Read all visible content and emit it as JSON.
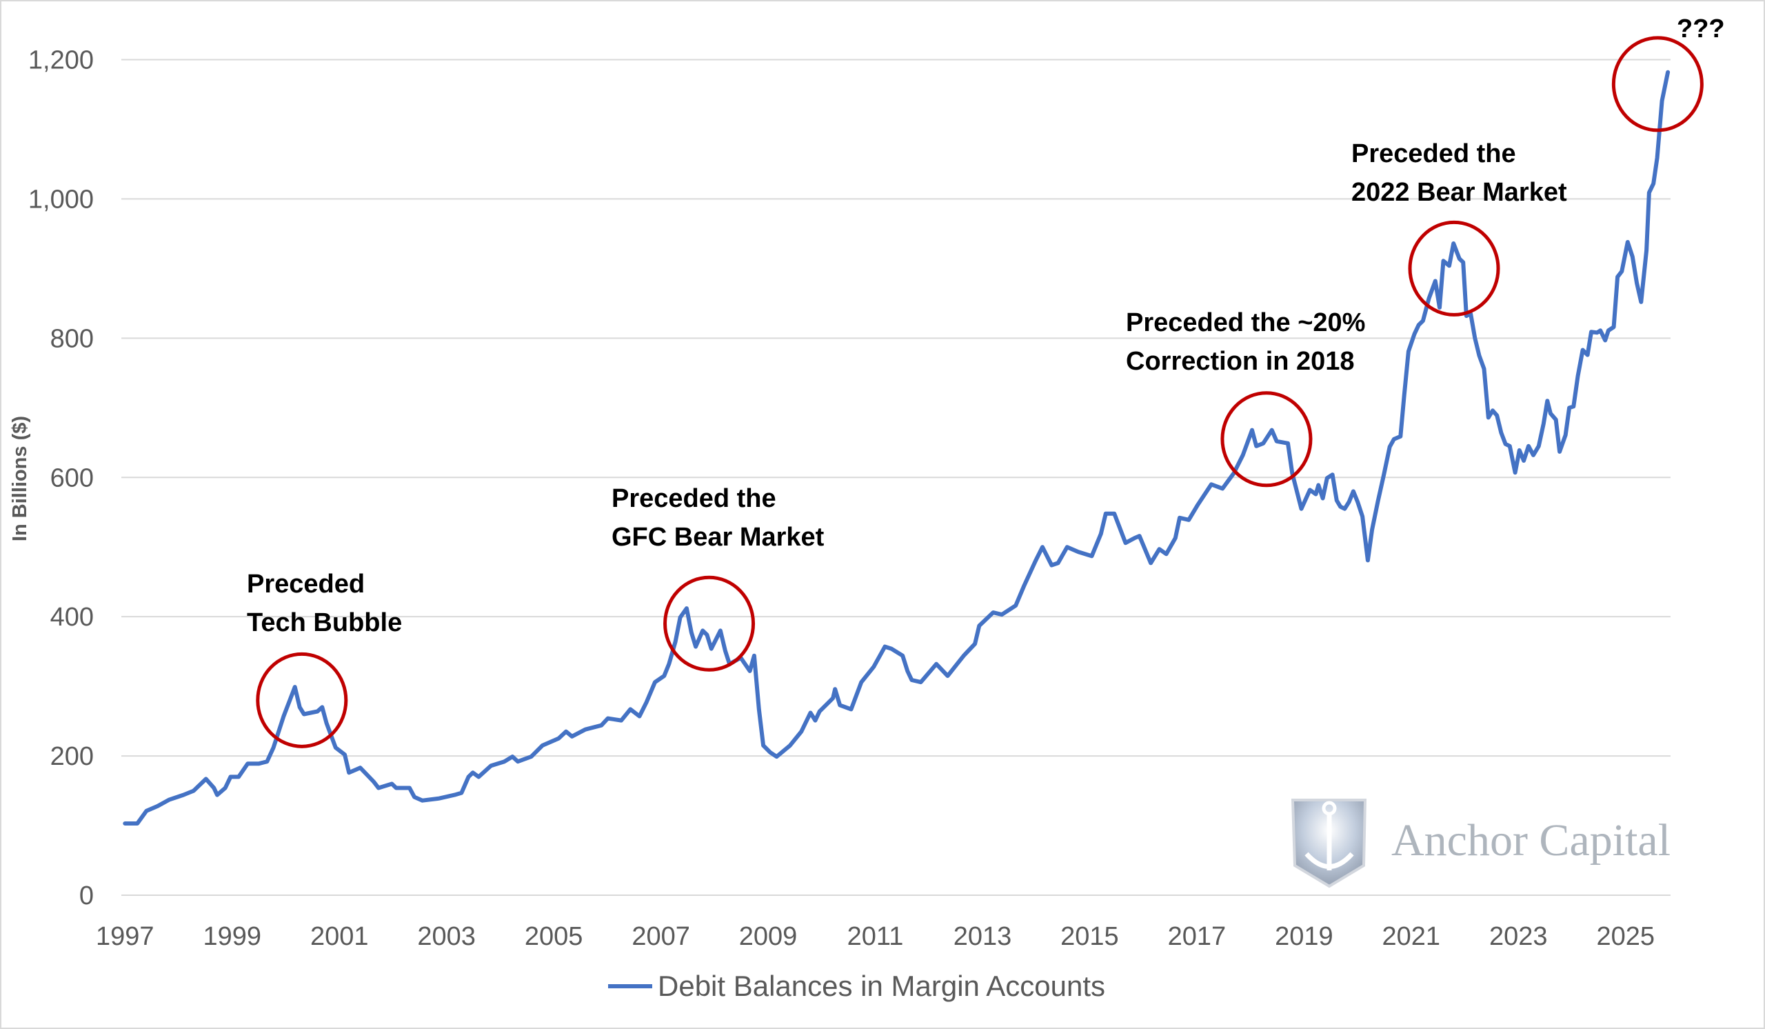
{
  "chart_data": {
    "type": "line",
    "title": "",
    "xlabel": "",
    "ylabel": "In Billions ($)",
    "xlim": [
      1997,
      2025.9
    ],
    "ylim": [
      0,
      1200
    ],
    "x_ticks": [
      "1997",
      "1999",
      "2001",
      "2003",
      "2005",
      "2007",
      "2009",
      "2011",
      "2013",
      "2015",
      "2017",
      "2019",
      "2021",
      "2023",
      "2025"
    ],
    "y_ticks": [
      0,
      200,
      400,
      600,
      800,
      1000,
      1200
    ],
    "y_tick_labels": [
      "0",
      "200",
      "400",
      "600",
      "800",
      "1,000",
      "1,200"
    ],
    "grid": "horizontal",
    "legend_position": "bottom",
    "series": [
      {
        "name": "Debit Balances in Margin Accounts",
        "color": "#4472c4",
        "x": [
          1997.0,
          1997.23,
          1997.4,
          1997.61,
          1997.82,
          1998.09,
          1998.28,
          1998.51,
          1998.66,
          1998.72,
          1998.87,
          1998.97,
          1999.12,
          1999.29,
          1999.5,
          1999.65,
          1999.77,
          1999.96,
          2000.09,
          2000.17,
          2000.26,
          2000.34,
          2000.59,
          2000.68,
          2000.76,
          2000.93,
          2001.1,
          2001.18,
          2001.39,
          2001.64,
          2001.73,
          2001.98,
          2002.06,
          2002.31,
          2002.4,
          2002.55,
          2002.86,
          2003.15,
          2003.28,
          2003.41,
          2003.49,
          2003.6,
          2003.83,
          2004.08,
          2004.23,
          2004.33,
          2004.58,
          2004.79,
          2005.09,
          2005.23,
          2005.34,
          2005.59,
          2005.89,
          2006.01,
          2006.26,
          2006.43,
          2006.6,
          2006.73,
          2006.89,
          2007.06,
          2007.15,
          2007.27,
          2007.36,
          2007.48,
          2007.57,
          2007.65,
          2007.78,
          2007.86,
          2007.94,
          2008.11,
          2008.2,
          2008.28,
          2008.49,
          2008.66,
          2008.74,
          2008.83,
          2008.91,
          2009.04,
          2009.16,
          2009.41,
          2009.62,
          2009.79,
          2009.88,
          2009.96,
          2010.21,
          2010.25,
          2010.34,
          2010.55,
          2010.74,
          2010.97,
          2011.18,
          2011.3,
          2011.51,
          2011.6,
          2011.68,
          2011.85,
          2012.14,
          2012.35,
          2012.65,
          2012.86,
          2012.94,
          2013.2,
          2013.36,
          2013.62,
          2013.78,
          2013.99,
          2014.12,
          2014.29,
          2014.41,
          2014.58,
          2014.79,
          2015.04,
          2015.21,
          2015.3,
          2015.46,
          2015.67,
          2015.84,
          2015.93,
          2016.14,
          2016.3,
          2016.43,
          2016.6,
          2016.68,
          2016.85,
          2017.02,
          2017.27,
          2017.48,
          2017.69,
          2017.86,
          2018.03,
          2018.11,
          2018.24,
          2018.4,
          2018.49,
          2018.7,
          2018.78,
          2018.95,
          2019.11,
          2019.22,
          2019.27,
          2019.35,
          2019.43,
          2019.53,
          2019.61,
          2019.68,
          2019.76,
          2019.84,
          2019.92,
          2020.0,
          2020.09,
          2020.19,
          2020.27,
          2020.38,
          2020.49,
          2020.6,
          2020.68,
          2020.8,
          2020.87,
          2020.95,
          2021.06,
          2021.14,
          2021.22,
          2021.33,
          2021.45,
          2021.53,
          2021.6,
          2021.71,
          2021.79,
          2021.9,
          2021.97,
          2022.03,
          2022.11,
          2022.19,
          2022.27,
          2022.36,
          2022.44,
          2022.52,
          2022.6,
          2022.68,
          2022.76,
          2022.84,
          2022.94,
          2023.02,
          2023.1,
          2023.19,
          2023.28,
          2023.38,
          2023.47,
          2023.54,
          2023.6,
          2023.7,
          2023.77,
          2023.88,
          2023.95,
          2024.03,
          2024.11,
          2024.2,
          2024.29,
          2024.36,
          2024.47,
          2024.53,
          2024.62,
          2024.68,
          2024.78,
          2024.85,
          2024.93,
          2025.04,
          2025.13,
          2025.21,
          2025.29,
          2025.39,
          2025.44,
          2025.52,
          2025.59,
          2025.68,
          2025.79
        ],
        "y": [
          103,
          103,
          121,
          128,
          137,
          144,
          150,
          167,
          154,
          144,
          154,
          170,
          170,
          189,
          189,
          192,
          212,
          257,
          283,
          299,
          270,
          260,
          264,
          270,
          247,
          212,
          202,
          176,
          183,
          163,
          154,
          160,
          154,
          154,
          141,
          136,
          139,
          144,
          147,
          170,
          176,
          170,
          186,
          192,
          199,
          192,
          199,
          215,
          225,
          235,
          228,
          238,
          244,
          254,
          251,
          267,
          257,
          277,
          306,
          315,
          332,
          364,
          399,
          412,
          377,
          357,
          380,
          374,
          354,
          380,
          351,
          332,
          341,
          322,
          344,
          267,
          215,
          205,
          199,
          215,
          235,
          262,
          251,
          264,
          283,
          296,
          273,
          267,
          306,
          328,
          357,
          354,
          344,
          322,
          309,
          306,
          332,
          315,
          344,
          361,
          387,
          406,
          403,
          416,
          445,
          480,
          500,
          474,
          477,
          500,
          493,
          487,
          519,
          548,
          548,
          506,
          513,
          516,
          477,
          497,
          490,
          513,
          542,
          539,
          561,
          590,
          584,
          606,
          632,
          668,
          645,
          649,
          668,
          652,
          649,
          606,
          555,
          582,
          576,
          589,
          570,
          599,
          604,
          567,
          558,
          555,
          565,
          580,
          565,
          544,
          481,
          525,
          566,
          604,
          644,
          655,
          659,
          718,
          781,
          806,
          819,
          825,
          857,
          882,
          844,
          911,
          904,
          936,
          914,
          909,
          832,
          835,
          800,
          775,
          756,
          686,
          696,
          689,
          664,
          648,
          645,
          607,
          639,
          624,
          645,
          632,
          645,
          677,
          710,
          692,
          683,
          637,
          661,
          700,
          702,
          746,
          783,
          776,
          809,
          808,
          811,
          797,
          811,
          816,
          888,
          896,
          938,
          917,
          879,
          852,
          926,
          1009,
          1022,
          1059,
          1141,
          1182
        ]
      }
    ],
    "annotations": [
      {
        "lines": [
          "Preceded",
          "Tech Bubble"
        ],
        "circle_at": [
          2000.3,
          280
        ]
      },
      {
        "lines": [
          "Preceded the",
          "GFC Bear Market"
        ],
        "circle_at": [
          2007.9,
          390
        ]
      },
      {
        "lines": [
          "Preceded the ~20%",
          "Correction in 2018"
        ],
        "circle_at": [
          2018.3,
          655
        ]
      },
      {
        "lines": [
          "Preceded the",
          "2022 Bear Market"
        ],
        "circle_at": [
          2021.8,
          900
        ]
      },
      {
        "lines": [
          "???"
        ],
        "circle_at": [
          2025.6,
          1165
        ]
      }
    ],
    "annotation_color": "#c00000"
  },
  "watermark": {
    "text": "Anchor Capital",
    "icon": "anchor-shield-icon"
  }
}
